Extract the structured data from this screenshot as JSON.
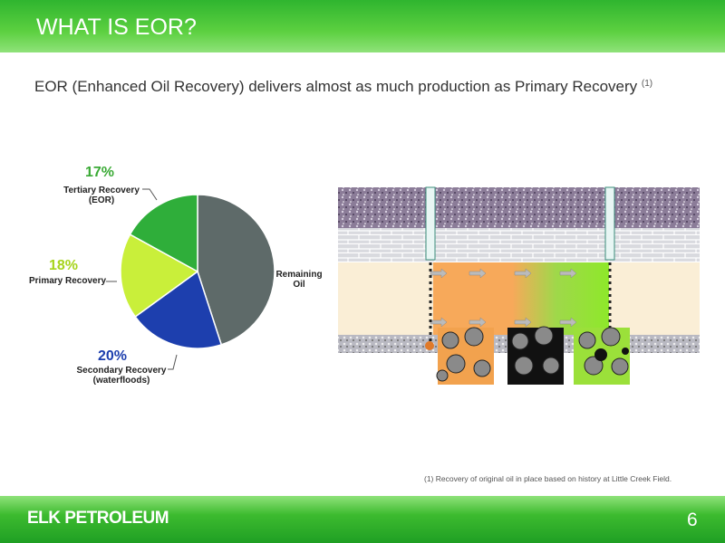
{
  "header": {
    "title": "WHAT IS EOR?"
  },
  "subtitle": {
    "text": "EOR (Enhanced Oil Recovery) delivers almost as much production as Primary Recovery",
    "note": "(1)"
  },
  "chart_data": {
    "type": "pie",
    "categories": [
      "Remaining Oil",
      "Secondary Recovery (waterfloods)",
      "Primary Recovery",
      "Tertiary Recovery (EOR)"
    ],
    "values": [
      45,
      20,
      18,
      17
    ],
    "value_labels": [
      null,
      "20%",
      "18%",
      "17%"
    ],
    "colors": [
      "#5e6a69",
      "#1d3fae",
      "#c9ef3a",
      "#2fae3a"
    ],
    "label_colors": [
      null,
      "#1d3fae",
      "#a6d41c",
      "#3aaa35"
    ]
  },
  "footnote": "(1) Recovery of original oil in place based on history at Little Creek Field.",
  "footer": {
    "logo": "ELK PETROLEUM",
    "page": "6"
  }
}
